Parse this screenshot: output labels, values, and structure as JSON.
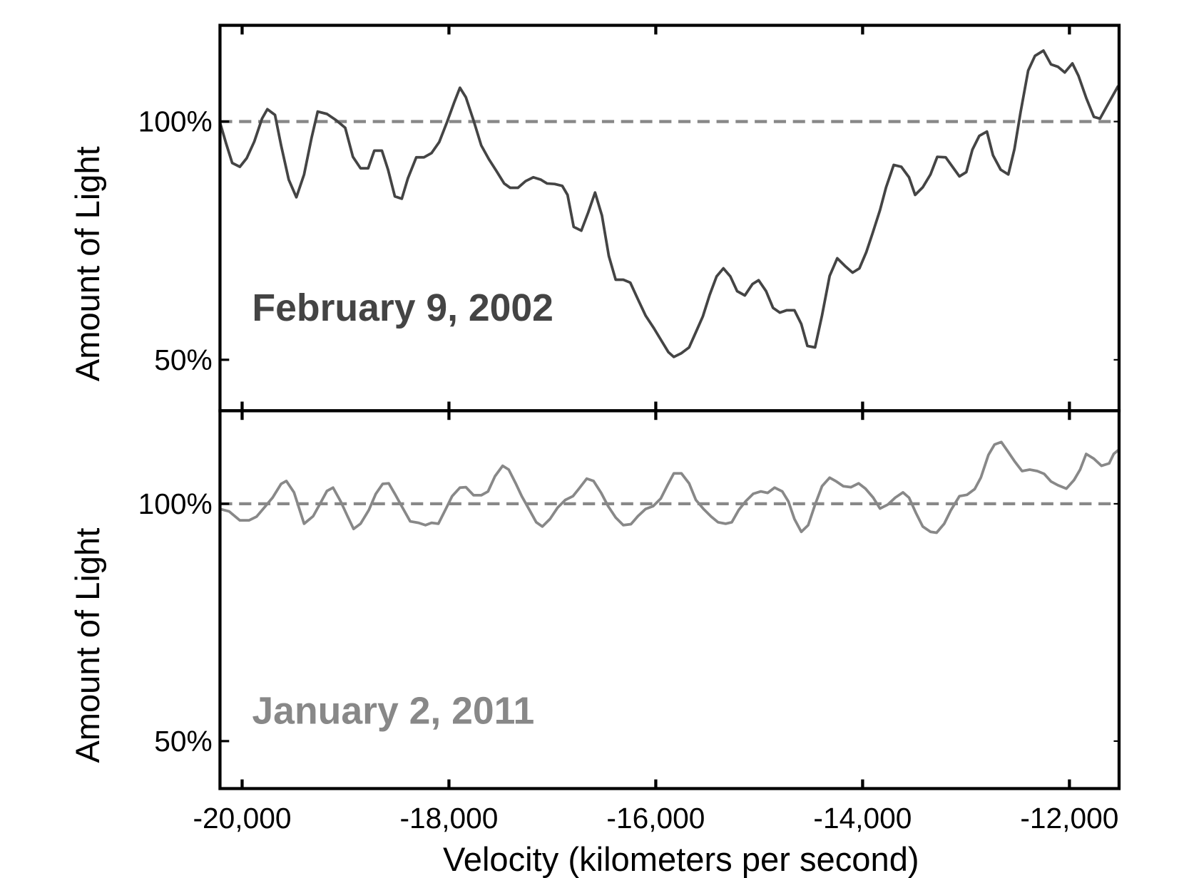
{
  "chart_data": [
    {
      "type": "line",
      "y_label": "Amount of Light",
      "annotation": "February 9, 2002",
      "annotation_color": "#444444",
      "xlim": [
        -20214,
        -11520
      ],
      "ylim": [
        39.3,
        120.2
      ],
      "xticks": [
        -20000,
        -18000,
        -16000,
        -14000,
        -12000
      ],
      "yticks": [
        {
          "value": 50,
          "label": "50%"
        },
        {
          "value": 100,
          "label": "100%"
        }
      ],
      "reference_line": {
        "value": 100,
        "color": "#888888",
        "style": "dashed"
      },
      "x": [
        -20214,
        -20155,
        -20096,
        -20022,
        -19956,
        -19882,
        -19808,
        -19756,
        -19682,
        -19623,
        -19549,
        -19475,
        -19401,
        -19328,
        -19269,
        -19180,
        -19092,
        -19003,
        -18929,
        -18855,
        -18781,
        -18722,
        -18648,
        -18589,
        -18523,
        -18456,
        -18397,
        -18316,
        -18242,
        -18168,
        -18094,
        -18020,
        -17946,
        -17894,
        -17836,
        -17762,
        -17688,
        -17614,
        -17540,
        -17466,
        -17407,
        -17333,
        -17259,
        -17185,
        -17112,
        -17052,
        -16978,
        -16904,
        -16853,
        -16794,
        -16720,
        -16654,
        -16587,
        -16521,
        -16454,
        -16388,
        -16314,
        -16247,
        -16173,
        -16099,
        -16018,
        -15945,
        -15878,
        -15826,
        -15752,
        -15678,
        -15612,
        -15545,
        -15479,
        -15412,
        -15346,
        -15279,
        -15213,
        -15139,
        -15065,
        -15006,
        -14933,
        -14866,
        -14800,
        -14733,
        -14659,
        -14593,
        -14534,
        -14460,
        -14393,
        -14319,
        -14245,
        -14171,
        -14097,
        -14031,
        -13964,
        -13906,
        -13832,
        -13773,
        -13699,
        -13625,
        -13551,
        -13492,
        -13418,
        -13344,
        -13278,
        -13197,
        -13130,
        -13064,
        -12997,
        -12938,
        -12872,
        -12798,
        -12739,
        -12665,
        -12591,
        -12532,
        -12473,
        -12399,
        -12333,
        -12251,
        -12178,
        -12111,
        -12045,
        -11971,
        -11912,
        -11838,
        -11764,
        -11705,
        -11631,
        -11528
      ],
      "series": [
        {
          "color": "#444444",
          "values": [
            99.8,
            95.4,
            91.3,
            90.5,
            92.3,
            95.8,
            100.6,
            102.6,
            101.4,
            95.0,
            87.8,
            84.1,
            88.9,
            96.6,
            102.1,
            101.6,
            100.3,
            98.7,
            92.6,
            90.2,
            90.2,
            93.9,
            93.9,
            89.9,
            84.3,
            83.8,
            88.1,
            92.5,
            92.5,
            93.4,
            95.7,
            99.8,
            104.2,
            107.1,
            105.1,
            100.2,
            95.0,
            92.1,
            89.6,
            87.0,
            86.1,
            86.1,
            87.5,
            88.3,
            87.8,
            87.0,
            86.9,
            86.5,
            84.6,
            77.9,
            77.1,
            80.9,
            85.1,
            80.3,
            71.8,
            66.8,
            66.8,
            66.2,
            62.7,
            59.3,
            56.6,
            54.0,
            51.6,
            50.6,
            51.4,
            52.6,
            55.8,
            59.1,
            63.6,
            67.5,
            69.2,
            67.5,
            64.4,
            63.5,
            65.9,
            66.7,
            64.4,
            60.9,
            59.9,
            60.4,
            60.4,
            57.5,
            52.9,
            52.6,
            59.3,
            67.6,
            71.3,
            69.7,
            68.3,
            69.2,
            72.6,
            76.4,
            81.4,
            86.2,
            90.9,
            90.5,
            88.3,
            84.6,
            86.2,
            88.9,
            92.6,
            92.5,
            90.5,
            88.5,
            89.4,
            94.1,
            97.0,
            97.9,
            92.9,
            89.9,
            88.9,
            94.2,
            101.9,
            110.7,
            113.8,
            114.9,
            112.0,
            111.5,
            110.3,
            112.2,
            109.6,
            105.0,
            101.0,
            100.6,
            103.5,
            107.5
          ]
        }
      ]
    },
    {
      "type": "line",
      "y_label": "Amount of Light",
      "x_label": "Velocity (kilometers per second)",
      "annotation": "January 2, 2011",
      "annotation_color": "#888888",
      "xlim": [
        -20214,
        -11520
      ],
      "ylim": [
        40.0,
        119.6
      ],
      "xticks": [
        {
          "value": -20000,
          "label": "-20,000"
        },
        {
          "value": -18000,
          "label": "-18,000"
        },
        {
          "value": -16000,
          "label": "-16,000"
        },
        {
          "value": -14000,
          "label": "-14,000"
        },
        {
          "value": -12000,
          "label": "-12,000"
        }
      ],
      "yticks": [
        {
          "value": 50,
          "label": "50%"
        },
        {
          "value": 100,
          "label": "100%"
        }
      ],
      "reference_line": {
        "value": 100,
        "color": "#888888",
        "style": "dashed"
      },
      "x": [
        -20214,
        -20126,
        -20022,
        -19934,
        -19860,
        -19786,
        -19705,
        -19623,
        -19572,
        -19498,
        -19401,
        -19313,
        -19239,
        -19180,
        -19121,
        -19047,
        -18981,
        -18922,
        -18855,
        -18774,
        -18707,
        -18641,
        -18582,
        -18523,
        -18449,
        -18375,
        -18294,
        -18227,
        -18168,
        -18102,
        -18028,
        -17969,
        -17894,
        -17836,
        -17762,
        -17688,
        -17622,
        -17555,
        -17481,
        -17422,
        -17355,
        -17296,
        -17222,
        -17156,
        -17097,
        -17023,
        -16949,
        -16875,
        -16801,
        -16742,
        -16668,
        -16602,
        -16528,
        -16461,
        -16388,
        -16314,
        -16240,
        -16173,
        -16099,
        -16026,
        -15952,
        -15885,
        -15826,
        -15752,
        -15678,
        -15612,
        -15538,
        -15464,
        -15398,
        -15324,
        -15265,
        -15198,
        -15132,
        -15058,
        -14984,
        -14918,
        -14851,
        -14777,
        -14718,
        -14659,
        -14593,
        -14526,
        -14460,
        -14393,
        -14319,
        -14253,
        -14186,
        -14112,
        -14038,
        -13972,
        -13898,
        -13832,
        -13758,
        -13684,
        -13610,
        -13551,
        -13485,
        -13418,
        -13344,
        -13285,
        -13211,
        -13145,
        -13064,
        -12990,
        -12916,
        -12857,
        -12783,
        -12724,
        -12658,
        -12591,
        -12532,
        -12458,
        -12384,
        -12310,
        -12244,
        -12178,
        -12111,
        -12030,
        -11956,
        -11897,
        -11838,
        -11764,
        -11690,
        -11616,
        -11572,
        -11528
      ],
      "series": [
        {
          "color": "#888888",
          "values": [
            98.9,
            98.4,
            96.5,
            96.5,
            97.3,
            99.2,
            101.3,
            104.2,
            104.8,
            102.4,
            95.8,
            97.4,
            100.3,
            102.7,
            103.4,
            100.5,
            97.4,
            94.7,
            95.8,
            98.7,
            102.1,
            104.2,
            104.3,
            102.1,
            99.2,
            96.3,
            96.0,
            95.5,
            96.0,
            95.8,
            99.0,
            101.6,
            103.4,
            103.5,
            101.8,
            101.8,
            102.6,
            105.8,
            108.0,
            107.2,
            104.3,
            101.6,
            98.7,
            96.1,
            95.2,
            96.8,
            99.2,
            100.8,
            101.6,
            103.2,
            105.3,
            104.8,
            102.3,
            99.5,
            97.1,
            95.5,
            95.7,
            97.4,
            98.9,
            99.5,
            101.1,
            104.0,
            106.4,
            106.4,
            104.3,
            100.8,
            98.9,
            97.3,
            96.1,
            95.8,
            96.1,
            98.7,
            100.5,
            102.1,
            102.6,
            102.3,
            103.4,
            102.6,
            100.5,
            96.8,
            94.1,
            95.5,
            99.8,
            103.7,
            105.5,
            104.7,
            103.7,
            103.5,
            104.3,
            103.2,
            101.3,
            99.0,
            99.8,
            101.3,
            102.4,
            101.3,
            98.1,
            95.2,
            94.1,
            93.9,
            95.8,
            98.7,
            101.6,
            101.9,
            103.1,
            105.5,
            110.3,
            112.5,
            113.0,
            110.9,
            109.0,
            106.9,
            107.2,
            106.9,
            106.3,
            104.7,
            103.9,
            103.2,
            105.0,
            107.2,
            110.5,
            109.5,
            108.0,
            108.5,
            110.5,
            111.3
          ]
        }
      ]
    }
  ]
}
